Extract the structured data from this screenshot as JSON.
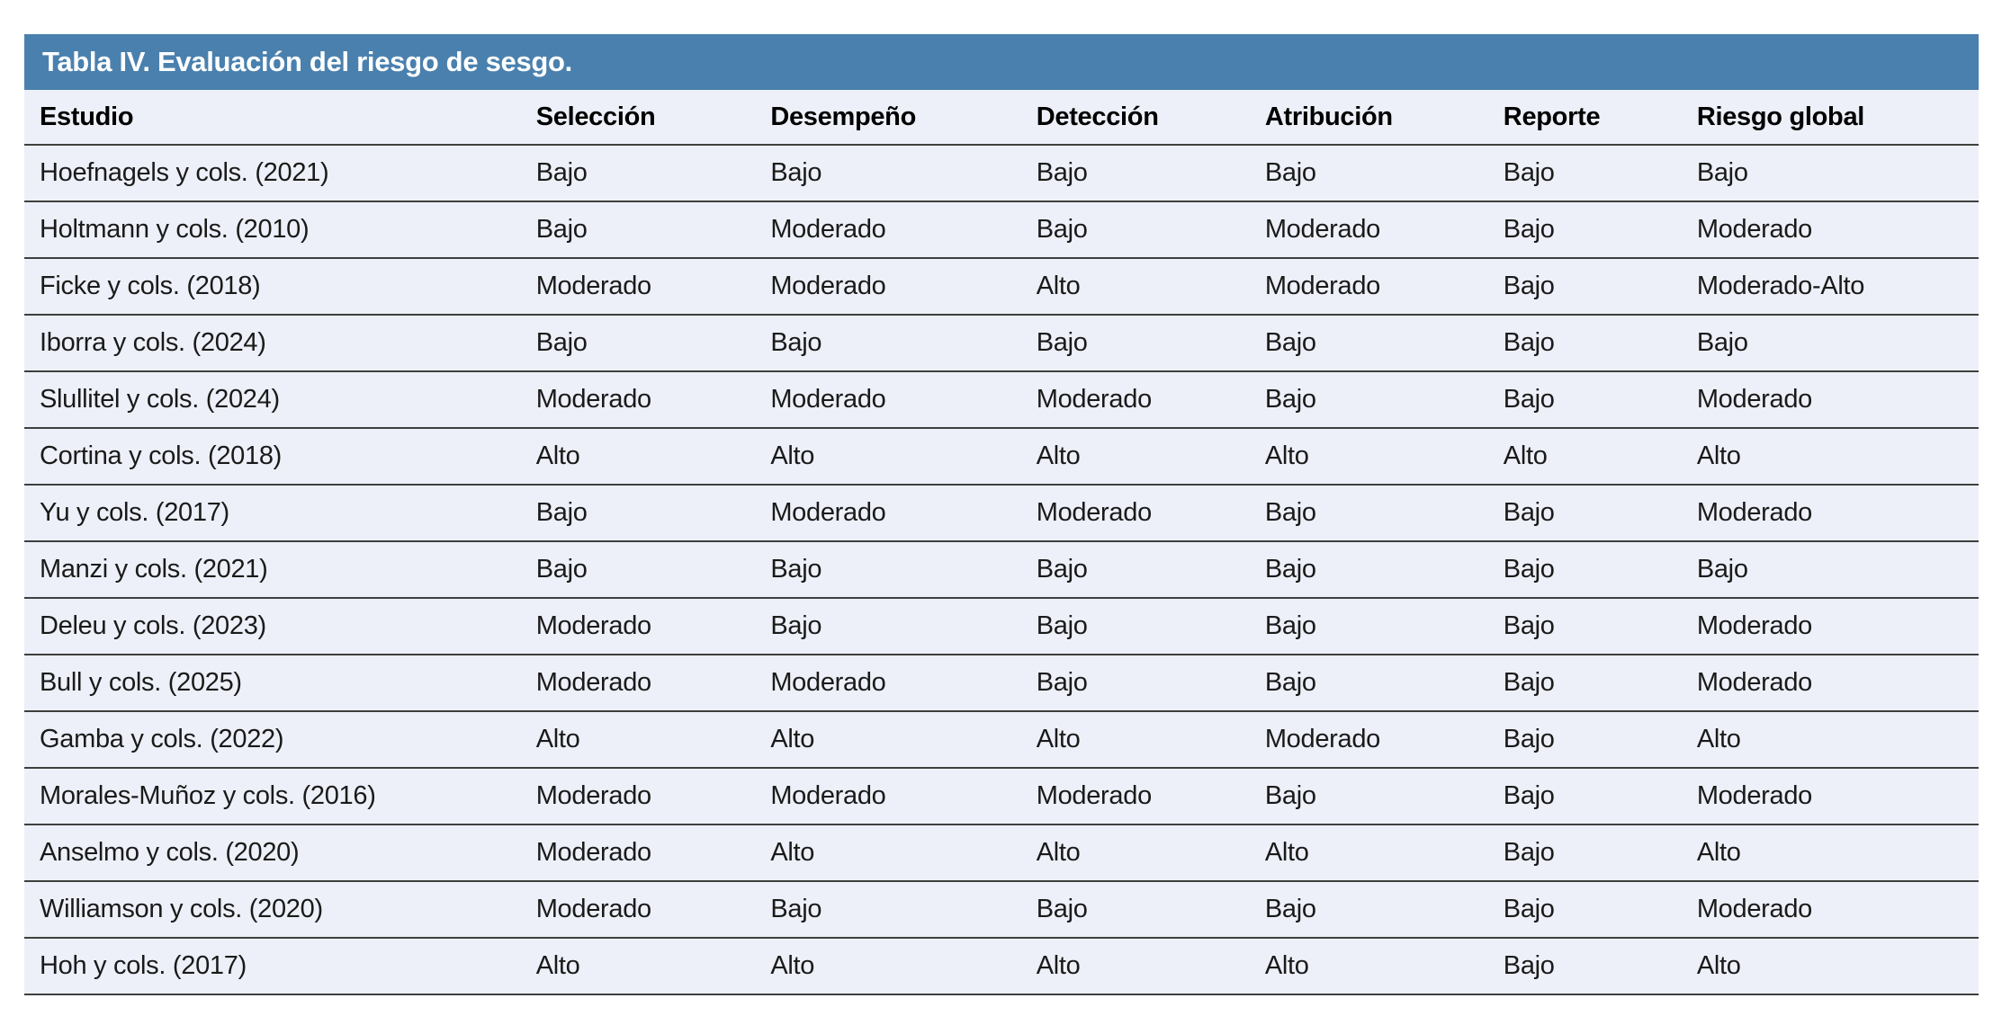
{
  "table": {
    "title": "Tabla IV. Evaluación del riesgo de sesgo.",
    "columns": [
      "Estudio",
      "Selección",
      "Desempeño",
      "Detección",
      "Atribución",
      "Reporte",
      "Riesgo global"
    ],
    "rows": [
      {
        "study": "Hoefnagels y cols. (2021)",
        "values": [
          "Bajo",
          "Bajo",
          "Bajo",
          "Bajo",
          "Bajo",
          "Bajo"
        ]
      },
      {
        "study": "Holtmann y cols. (2010)",
        "values": [
          "Bajo",
          "Moderado",
          "Bajo",
          "Moderado",
          "Bajo",
          "Moderado"
        ]
      },
      {
        "study": "Ficke y cols. (2018)",
        "values": [
          "Moderado",
          "Moderado",
          "Alto",
          "Moderado",
          "Bajo",
          "Moderado-Alto"
        ]
      },
      {
        "study": "Iborra y cols. (2024)",
        "values": [
          "Bajo",
          "Bajo",
          "Bajo",
          "Bajo",
          "Bajo",
          "Bajo"
        ]
      },
      {
        "study": "Slullitel y cols. (2024)",
        "values": [
          "Moderado",
          "Moderado",
          "Moderado",
          "Bajo",
          "Bajo",
          "Moderado"
        ]
      },
      {
        "study": "Cortina y cols. (2018)",
        "values": [
          "Alto",
          "Alto",
          "Alto",
          "Alto",
          "Alto",
          "Alto"
        ]
      },
      {
        "study": "Yu y cols. (2017)",
        "values": [
          "Bajo",
          "Moderado",
          "Moderado",
          "Bajo",
          "Bajo",
          "Moderado"
        ]
      },
      {
        "study": "Manzi y cols. (2021)",
        "values": [
          "Bajo",
          "Bajo",
          "Bajo",
          "Bajo",
          "Bajo",
          "Bajo"
        ]
      },
      {
        "study": "Deleu y cols. (2023)",
        "values": [
          "Moderado",
          "Bajo",
          "Bajo",
          "Bajo",
          "Bajo",
          "Moderado"
        ]
      },
      {
        "study": "Bull y cols. (2025)",
        "values": [
          "Moderado",
          "Moderado",
          "Bajo",
          "Bajo",
          "Bajo",
          "Moderado"
        ]
      },
      {
        "study": "Gamba y cols. (2022)",
        "values": [
          "Alto",
          "Alto",
          "Alto",
          "Moderado",
          "Bajo",
          "Alto"
        ]
      },
      {
        "study": "Morales-Muñoz y cols. (2016)",
        "values": [
          "Moderado",
          "Moderado",
          "Moderado",
          "Bajo",
          "Bajo",
          "Moderado"
        ]
      },
      {
        "study": "Anselmo y cols. (2020)",
        "values": [
          "Moderado",
          "Alto",
          "Alto",
          "Alto",
          "Bajo",
          "Alto"
        ]
      },
      {
        "study": "Williamson y cols. (2020)",
        "values": [
          "Moderado",
          "Bajo",
          "Bajo",
          "Bajo",
          "Bajo",
          "Moderado"
        ]
      },
      {
        "study": "Hoh y cols. (2017)",
        "values": [
          "Alto",
          "Alto",
          "Alto",
          "Alto",
          "Bajo",
          "Alto"
        ]
      }
    ],
    "colors": {
      "title_bg": "#4a80ae",
      "title_text": "#ffffff",
      "row_bg": "#edf0f8",
      "border": "#3f3f3f",
      "text": "#1a1a1a"
    }
  }
}
